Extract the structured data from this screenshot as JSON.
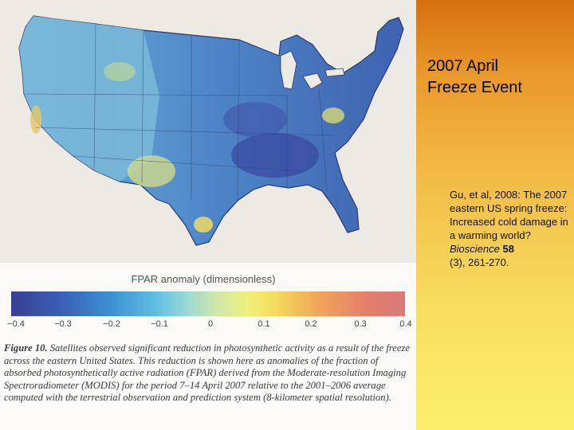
{
  "slide": {
    "title_line1": "2007 April",
    "title_line2": "Freeze Event",
    "citation": {
      "text_pre": "Gu, et al, 2008: The  2007 eastern US spring freeze: Increased cold damage in a warming world? ",
      "journal": "Bioscience",
      "volume": "58",
      "text_post": "(3), 261-270."
    }
  },
  "figure": {
    "legend_title": "FPAR anomaly (dimensionless)",
    "colorbar_ticks": [
      "−0.4",
      "−0.3",
      "−0.2",
      "−0.1",
      "0",
      "0.1",
      "0.2",
      "0.3",
      "0.4"
    ],
    "caption_label": "Figure 10.",
    "caption_text": " Satellites observed significant reduction in photosynthetic activity as a result of the freeze across the eastern United States. This reduction is shown here as anomalies of the fraction of absorbed photosynthetically active radiation (FPAR) derived from the Moderate-resolution Imaging Spectroradiometer (MODIS) for the period 7–14 April 2007 relative to the 2001–2006 average computed with the terrestrial observation and prediction system (8-kilometer spatial resolution)."
  },
  "colors": {
    "sidebar_top": "#d6700f",
    "sidebar_bottom": "#fbef6e",
    "map_base": "#5fa6d6",
    "strong_negative": "#3b4ea8",
    "positive": "#d9d86a"
  }
}
